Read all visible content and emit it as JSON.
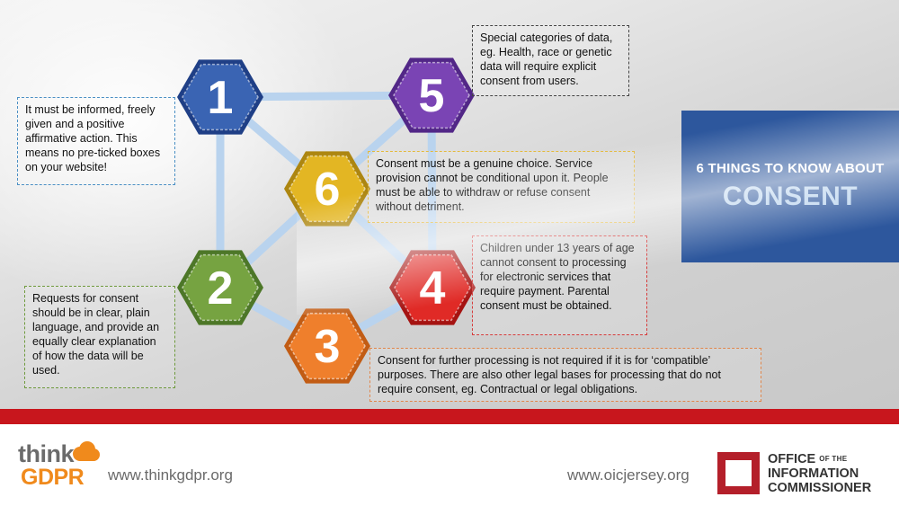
{
  "hexagons": [
    {
      "number": "1",
      "color": "#3a64b3",
      "edge": "#1f3f86"
    },
    {
      "number": "2",
      "color": "#76a341",
      "edge": "#4d7728"
    },
    {
      "number": "3",
      "color": "#ef7f2c",
      "edge": "#c25c14"
    },
    {
      "number": "4",
      "color": "#e02a26",
      "edge": "#a51311"
    },
    {
      "number": "5",
      "color": "#7a44b4",
      "edge": "#522787"
    },
    {
      "number": "6",
      "color": "#e3b623",
      "edge": "#ad8610"
    }
  ],
  "notes": {
    "n1": "It must be informed, freely given and a positive affirmative action. This means no pre-ticked boxes on your website!",
    "n5": "Special categories of data, eg. Health, race or genetic data will require explicit consent from users.",
    "n6": "Consent must be a genuine choice. Service provision cannot be conditional upon it. People must be able to withdraw or refuse consent without detriment.",
    "n4": "Children under 13 years of age cannot consent to processing for electronic services that require payment. Parental consent must be obtained.",
    "n2": "Requests for consent should be in clear, plain language, and provide an equally clear explanation of how the data will be used.",
    "n3": "Consent for further processing is not required if it is for ‘compatible’ purposes.  There are also other legal bases for processing that do not require consent, eg. Contractual or legal obligations."
  },
  "title": {
    "top": "6 THINGS TO KNOW ABOUT",
    "main": "CONSENT"
  },
  "footer": {
    "left_url": "www.thinkgdpr.org",
    "right_url": "www.oicjersey.org",
    "think_logo": {
      "word1": "think",
      "word2": "GDPR"
    },
    "oic_logo": {
      "line1a": "OFFICE",
      "line1b": "OF THE",
      "line2": "INFORMATION",
      "line3": "COMMISSIONER"
    }
  },
  "colors": {
    "connector": "#b9d3ee",
    "title_bg": "#2d579d",
    "red_bar": "#c8161d"
  }
}
